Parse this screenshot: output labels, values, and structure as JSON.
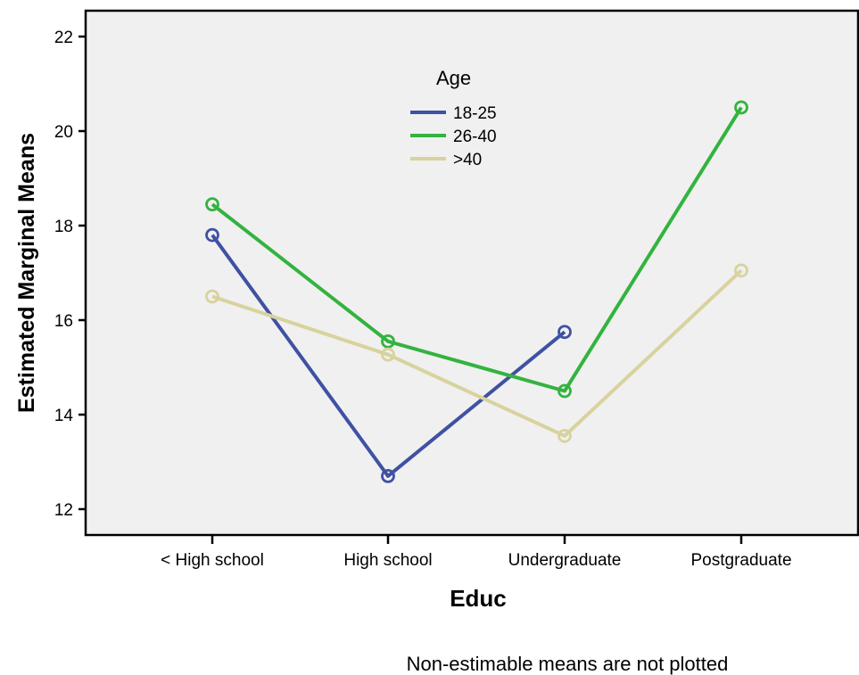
{
  "chart_data": {
    "type": "line",
    "xlabel": "Educ",
    "ylabel": "Estimated Marginal Means",
    "categories": [
      "< High school",
      "High school",
      "Undergraduate",
      "Postgraduate"
    ],
    "ylim": [
      11.5,
      22.5
    ],
    "yticks": [
      12,
      14,
      16,
      18,
      20,
      22
    ],
    "grid": false,
    "legend": {
      "title": "Age",
      "placement": "top-center"
    },
    "series": [
      {
        "name": "18-25",
        "color": "#3f51a3",
        "values": [
          17.8,
          12.7,
          15.75,
          null
        ]
      },
      {
        "name": "26-40",
        "color": "#33b33f",
        "values": [
          18.45,
          15.55,
          14.5,
          20.5
        ]
      },
      {
        "name": ">40",
        "color": "#d8d29e",
        "values": [
          16.5,
          15.27,
          13.55,
          17.05
        ]
      }
    ],
    "footnote": "Non-estimable means are not plotted",
    "plot_background": "#f0f0f0"
  }
}
